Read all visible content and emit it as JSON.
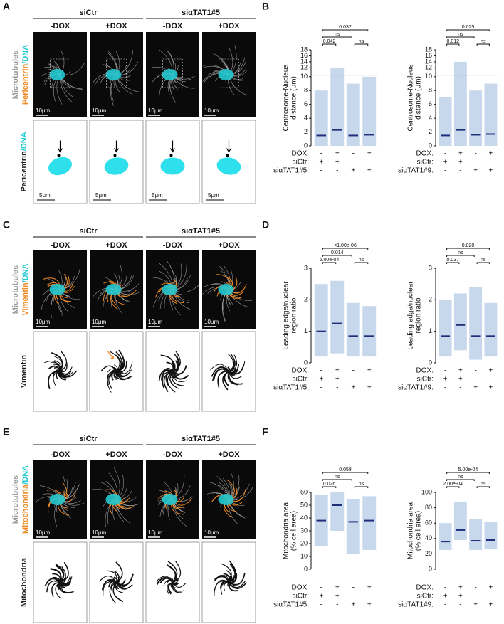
{
  "figure": {
    "image_panels": [
      {
        "letter": "A",
        "groups": [
          "siCtr",
          "siαTAT1#5"
        ],
        "conditions": [
          "-DOX",
          "+DOX",
          "-DOX",
          "+DOX"
        ],
        "side_label_top": [
          "Microtubules",
          "Pericentrin",
          "/DNA"
        ],
        "side_label_bottom": [
          "Pericentrin",
          "/DNA"
        ],
        "scale_top": [
          "10μm",
          "10μm",
          "10μm",
          "10μm"
        ],
        "scale_bottom": [
          "5μm",
          "5μm",
          "5μm",
          "5μm"
        ]
      },
      {
        "letter": "C",
        "groups": [
          "siCtr",
          "siαTAT1#5"
        ],
        "conditions": [
          "-DOX",
          "+DOX",
          "-DOX",
          "+DOX"
        ],
        "side_label_top": [
          "Microtubules",
          "Vimentin",
          "/DNA"
        ],
        "side_label_bottom": [
          "Vimentin"
        ],
        "scale_top": [
          "10μm",
          "10μm",
          "10μm",
          "10μm"
        ]
      },
      {
        "letter": "E",
        "groups": [
          "siCtr",
          "siαTAT1#5"
        ],
        "conditions": [
          "-DOX",
          "+DOX",
          "-DOX",
          "+DOX"
        ],
        "side_label_top": [
          "Microtubules",
          "Mitochondria",
          "/DNA"
        ],
        "side_label_bottom": [
          "Mitochondria"
        ],
        "scale_top": [
          "10μm",
          "10μm",
          "10μm",
          "10μm"
        ]
      }
    ],
    "chart_panels": [
      {
        "letter": "B",
        "charts": [
          {
            "type": "dot",
            "ylabel": [
              "Centrosome-Nucleus",
              "distance (μm)"
            ],
            "ylim": [
              0,
              18
            ],
            "ybreak": 10,
            "yticks": [
              0,
              2,
              4,
              6,
              8,
              10,
              12,
              14,
              16,
              18
            ],
            "conditions": [
              {
                "label": "DOX:",
                "signs": [
                  "-",
                  "+",
                  "-",
                  "+"
                ]
              },
              {
                "label": "siCtr:",
                "signs": [
                  "+",
                  "+",
                  "-",
                  "-"
                ]
              },
              {
                "label": "siαTAT1#5:",
                "signs": [
                  "-",
                  "-",
                  "+",
                  "+"
                ]
              }
            ],
            "medians": [
              1.5,
              2.3,
              1.5,
              1.6
            ],
            "ranges": [
              [
                0,
                8
              ],
              [
                0,
                12
              ],
              [
                0,
                9
              ],
              [
                0,
                10
              ]
            ],
            "comparisons": [
              "0.042",
              "ns",
              "0.032",
              "ns"
            ]
          },
          {
            "type": "dot",
            "ylabel": [
              "Centrosome-Nucleus",
              "distance (μm)"
            ],
            "ylim": [
              0,
              18
            ],
            "ybreak": 10,
            "yticks": [
              0,
              2,
              4,
              6,
              8,
              10,
              12,
              14,
              16,
              18
            ],
            "conditions": [
              {
                "label": "DOX:",
                "signs": [
                  "-",
                  "+",
                  "-",
                  "+"
                ]
              },
              {
                "label": "siCtr:",
                "signs": [
                  "+",
                  "+",
                  "-",
                  "-"
                ]
              },
              {
                "label": "siαTAT1#9:",
                "signs": [
                  "-",
                  "-",
                  "+",
                  "+"
                ]
              }
            ],
            "medians": [
              1.5,
              2.3,
              1.6,
              1.7
            ],
            "ranges": [
              [
                0,
                7
              ],
              [
                0,
                14
              ],
              [
                0,
                8
              ],
              [
                0,
                9
              ]
            ],
            "comparisons": [
              "0.012",
              "ns",
              "0.025",
              "ns"
            ]
          }
        ]
      },
      {
        "letter": "D",
        "charts": [
          {
            "type": "dot",
            "ylabel": [
              "Leading edge/nuclear",
              "region ratio"
            ],
            "ylim": [
              0,
              3
            ],
            "yticks": [
              0,
              1,
              2,
              3
            ],
            "conditions": [
              {
                "label": "DOX:",
                "signs": [
                  "-",
                  "+",
                  "-",
                  "+"
                ]
              },
              {
                "label": "siCtr:",
                "signs": [
                  "+",
                  "+",
                  "-",
                  "-"
                ]
              },
              {
                "label": "siαTAT1#5:",
                "signs": [
                  "-",
                  "-",
                  "+",
                  "+"
                ]
              }
            ],
            "medians": [
              1.0,
              1.25,
              0.85,
              0.85
            ],
            "ranges": [
              [
                0.2,
                2.5
              ],
              [
                0.3,
                2.6
              ],
              [
                0.2,
                1.9
              ],
              [
                0.2,
                1.8
              ]
            ],
            "comparisons": [
              "6.00e-04",
              "0.014",
              "<1.00e-06",
              "ns"
            ]
          },
          {
            "type": "dot",
            "ylabel": [
              "Leading edge/nuclear",
              "region ratio"
            ],
            "ylim": [
              0,
              3
            ],
            "yticks": [
              0,
              1,
              2,
              3
            ],
            "conditions": [
              {
                "label": "DOX:",
                "signs": [
                  "-",
                  "+",
                  "-",
                  "+"
                ]
              },
              {
                "label": "siCtr:",
                "signs": [
                  "+",
                  "+",
                  "-",
                  "-"
                ]
              },
              {
                "label": "siαTAT1#9:",
                "signs": [
                  "-",
                  "-",
                  "+",
                  "+"
                ]
              }
            ],
            "medians": [
              0.85,
              1.2,
              0.85,
              0.85
            ],
            "ranges": [
              [
                0.2,
                2.0
              ],
              [
                0.4,
                2.2
              ],
              [
                0.1,
                2.4
              ],
              [
                0.2,
                1.9
              ]
            ],
            "comparisons": [
              "0.037",
              "ns",
              "0.020",
              "ns"
            ]
          }
        ]
      },
      {
        "letter": "F",
        "charts": [
          {
            "type": "dot",
            "ylabel": [
              "Mitochondria area",
              "(% cell area)"
            ],
            "ylim": [
              0,
              60
            ],
            "yticks": [
              0,
              10,
              20,
              30,
              40,
              50,
              60
            ],
            "conditions": [
              {
                "label": "DOX:",
                "signs": [
                  "-",
                  "+",
                  "-",
                  "+"
                ]
              },
              {
                "label": "siCtr:",
                "signs": [
                  "+",
                  "+",
                  "-",
                  "-"
                ]
              },
              {
                "label": "siαTAT1#5:",
                "signs": [
                  "-",
                  "-",
                  "+",
                  "+"
                ]
              }
            ],
            "medians": [
              38,
              50,
              37,
              38
            ],
            "ranges": [
              [
                18,
                58
              ],
              [
                30,
                60
              ],
              [
                12,
                55
              ],
              [
                15,
                57
              ]
            ],
            "comparisons": [
              "0.026",
              "ns",
              "0.058",
              "ns"
            ]
          },
          {
            "type": "dot",
            "ylabel": [
              "Mitochondria area",
              "(% cell area)"
            ],
            "ylim": [
              0,
              100
            ],
            "yticks": [
              0,
              20,
              40,
              60,
              80,
              100
            ],
            "conditions": [
              {
                "label": "DOX:",
                "signs": [
                  "-",
                  "+",
                  "-",
                  "+"
                ]
              },
              {
                "label": "siCtr:",
                "signs": [
                  "+",
                  "+",
                  "-",
                  "-"
                ]
              },
              {
                "label": "siαTAT1#9:",
                "signs": [
                  "-",
                  "-",
                  "+",
                  "+"
                ]
              }
            ],
            "medians": [
              36,
              51,
              37,
              38
            ],
            "ranges": [
              [
                25,
                60
              ],
              [
                38,
                88
              ],
              [
                25,
                65
              ],
              [
                26,
                62
              ]
            ],
            "comparisons": [
              "2.00e-04",
              "ns",
              "5.00e-04",
              "ns"
            ]
          }
        ]
      }
    ]
  }
}
